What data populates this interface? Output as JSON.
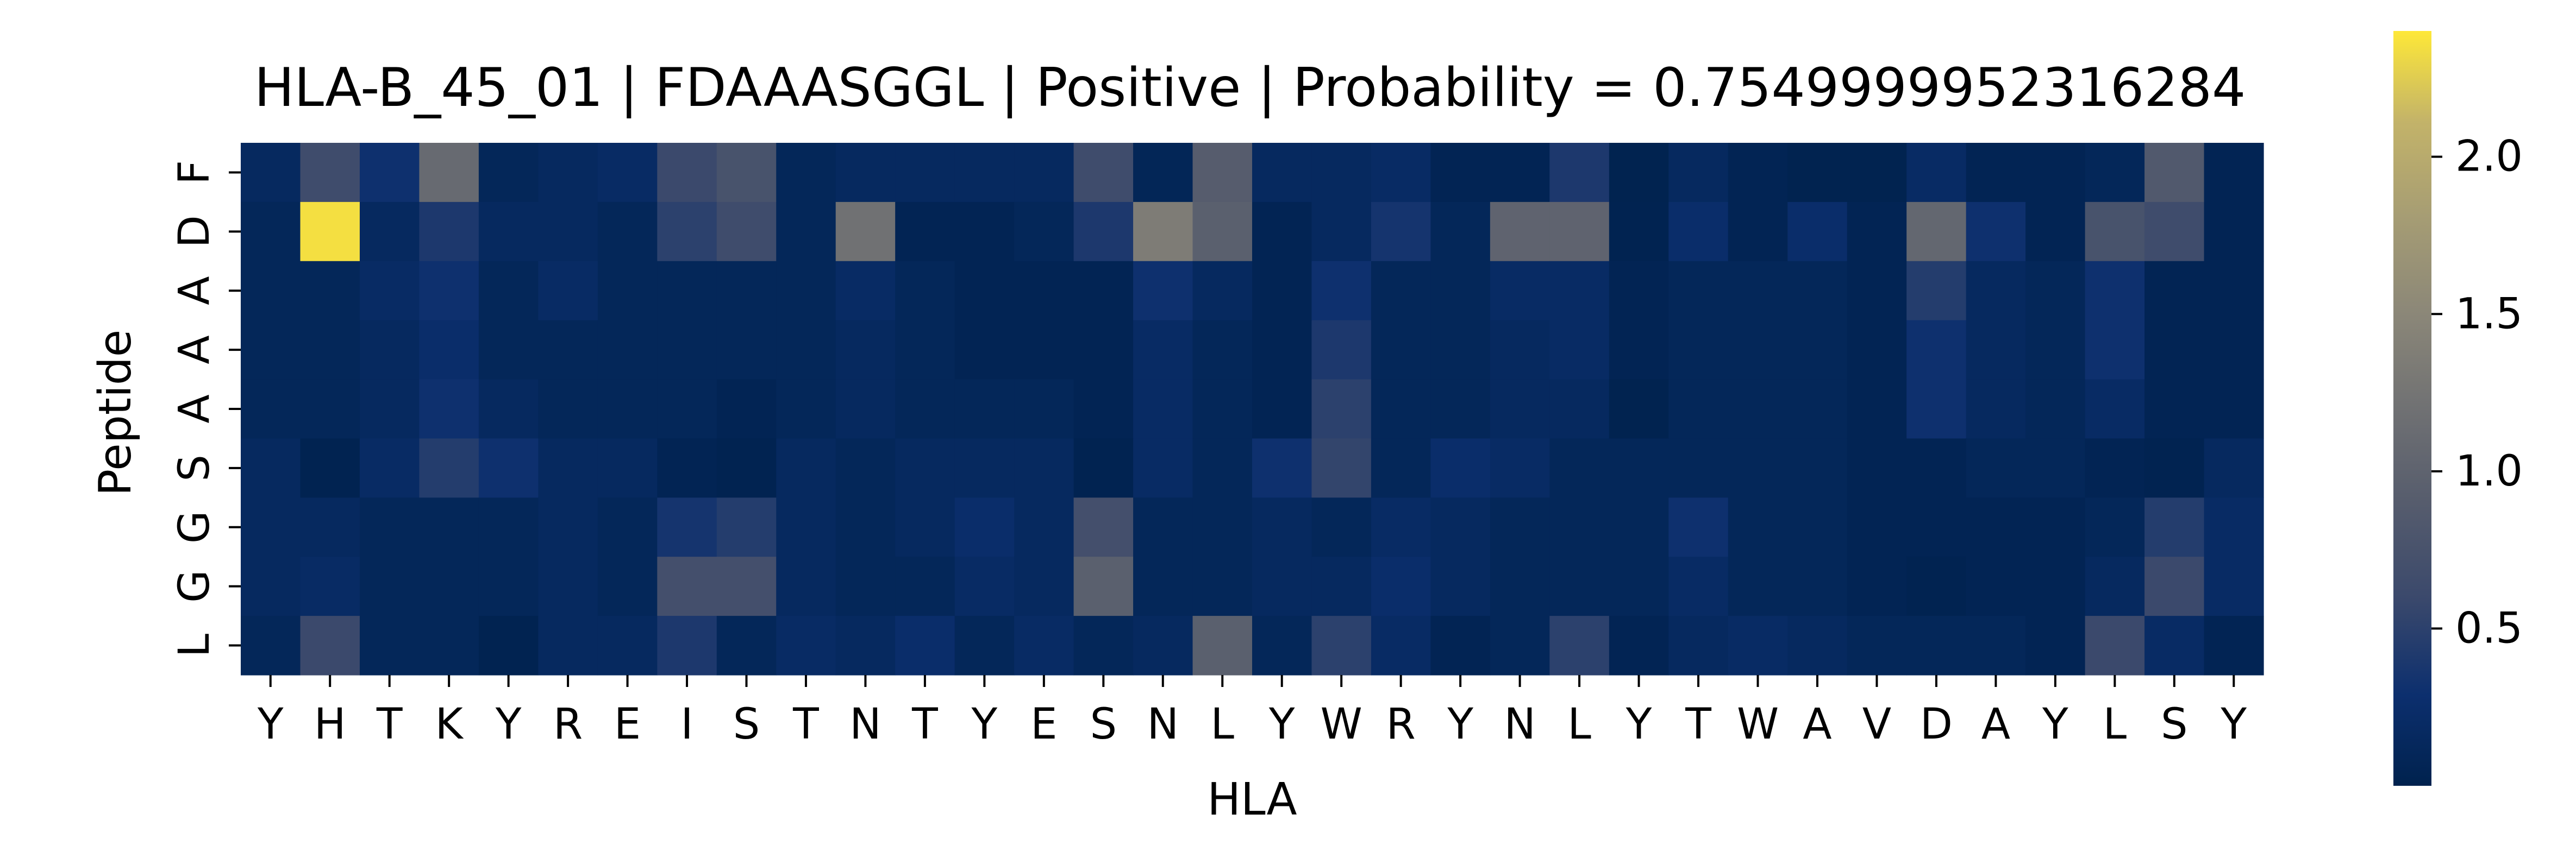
{
  "chart_data": {
    "type": "heatmap",
    "title": "HLA-B_45_01 | FDAAASGGL | Positive | Probability = 0.7549999952316284",
    "xlabel": "HLA",
    "ylabel": "Peptide",
    "x_labels": [
      "Y",
      "H",
      "T",
      "K",
      "Y",
      "R",
      "E",
      "I",
      "S",
      "T",
      "N",
      "T",
      "Y",
      "E",
      "S",
      "N",
      "L",
      "Y",
      "W",
      "R",
      "Y",
      "N",
      "L",
      "Y",
      "T",
      "W",
      "A",
      "V",
      "D",
      "A",
      "Y",
      "L",
      "S",
      "Y"
    ],
    "y_labels": [
      "F",
      "D",
      "A",
      "A",
      "A",
      "S",
      "G",
      "G",
      "L"
    ],
    "values": [
      [
        0.15,
        0.65,
        0.3,
        1.1,
        0.1,
        0.15,
        0.2,
        0.6,
        0.75,
        0.1,
        0.15,
        0.15,
        0.15,
        0.15,
        0.65,
        0.08,
        0.9,
        0.15,
        0.15,
        0.2,
        0.05,
        0.05,
        0.4,
        0.02,
        0.15,
        0.05,
        0.02,
        0.02,
        0.2,
        0.05,
        0.05,
        0.1,
        0.85,
        0.05
      ],
      [
        0.1,
        2.35,
        0.15,
        0.4,
        0.15,
        0.15,
        0.1,
        0.5,
        0.65,
        0.1,
        1.2,
        0.05,
        0.05,
        0.1,
        0.4,
        1.35,
        0.95,
        0.05,
        0.15,
        0.35,
        0.1,
        1.0,
        1.0,
        0.03,
        0.25,
        0.05,
        0.25,
        0.05,
        1.05,
        0.3,
        0.05,
        0.75,
        0.65,
        0.05
      ],
      [
        0.1,
        0.1,
        0.2,
        0.3,
        0.1,
        0.2,
        0.1,
        0.1,
        0.1,
        0.1,
        0.2,
        0.1,
        0.05,
        0.05,
        0.05,
        0.3,
        0.15,
        0.05,
        0.3,
        0.1,
        0.1,
        0.2,
        0.2,
        0.05,
        0.1,
        0.1,
        0.1,
        0.05,
        0.45,
        0.15,
        0.1,
        0.3,
        0.05,
        0.05
      ],
      [
        0.1,
        0.1,
        0.15,
        0.25,
        0.1,
        0.1,
        0.1,
        0.1,
        0.1,
        0.1,
        0.15,
        0.1,
        0.05,
        0.05,
        0.05,
        0.2,
        0.1,
        0.05,
        0.4,
        0.1,
        0.1,
        0.15,
        0.2,
        0.05,
        0.1,
        0.1,
        0.1,
        0.05,
        0.3,
        0.15,
        0.1,
        0.3,
        0.05,
        0.05
      ],
      [
        0.1,
        0.1,
        0.15,
        0.3,
        0.15,
        0.1,
        0.1,
        0.1,
        0.05,
        0.1,
        0.15,
        0.1,
        0.1,
        0.1,
        0.05,
        0.2,
        0.1,
        0.05,
        0.5,
        0.1,
        0.1,
        0.15,
        0.15,
        0.02,
        0.1,
        0.1,
        0.1,
        0.05,
        0.3,
        0.15,
        0.1,
        0.2,
        0.05,
        0.05
      ],
      [
        0.15,
        0.03,
        0.2,
        0.45,
        0.3,
        0.15,
        0.15,
        0.05,
        0.03,
        0.15,
        0.1,
        0.15,
        0.15,
        0.15,
        0.03,
        0.2,
        0.1,
        0.3,
        0.55,
        0.1,
        0.25,
        0.2,
        0.1,
        0.1,
        0.1,
        0.1,
        0.1,
        0.05,
        0.05,
        0.1,
        0.1,
        0.05,
        0.03,
        0.15
      ],
      [
        0.15,
        0.15,
        0.1,
        0.1,
        0.1,
        0.15,
        0.1,
        0.35,
        0.45,
        0.15,
        0.1,
        0.15,
        0.25,
        0.15,
        0.7,
        0.1,
        0.1,
        0.15,
        0.1,
        0.2,
        0.15,
        0.1,
        0.1,
        0.1,
        0.3,
        0.1,
        0.1,
        0.05,
        0.05,
        0.05,
        0.05,
        0.1,
        0.45,
        0.2
      ],
      [
        0.15,
        0.2,
        0.1,
        0.1,
        0.1,
        0.15,
        0.1,
        0.7,
        0.7,
        0.15,
        0.1,
        0.1,
        0.2,
        0.15,
        0.95,
        0.1,
        0.1,
        0.15,
        0.15,
        0.25,
        0.15,
        0.1,
        0.1,
        0.1,
        0.2,
        0.1,
        0.1,
        0.05,
        0.03,
        0.05,
        0.05,
        0.15,
        0.6,
        0.2
      ],
      [
        0.1,
        0.6,
        0.1,
        0.1,
        0.03,
        0.15,
        0.15,
        0.4,
        0.1,
        0.2,
        0.15,
        0.25,
        0.1,
        0.2,
        0.1,
        0.15,
        0.95,
        0.1,
        0.5,
        0.2,
        0.05,
        0.1,
        0.5,
        0.05,
        0.15,
        0.2,
        0.15,
        0.1,
        0.1,
        0.1,
        0.05,
        0.6,
        0.2,
        0.05
      ]
    ],
    "colormap": "cividis",
    "colorbar": {
      "vmin": 0.0,
      "vmax": 2.4,
      "ticks": [
        0.5,
        1.0,
        1.5,
        2.0
      ],
      "tick_labels": [
        "0.5",
        "1.0",
        "1.5",
        "2.0"
      ]
    },
    "grid": false,
    "legend": "colorbar-right"
  }
}
